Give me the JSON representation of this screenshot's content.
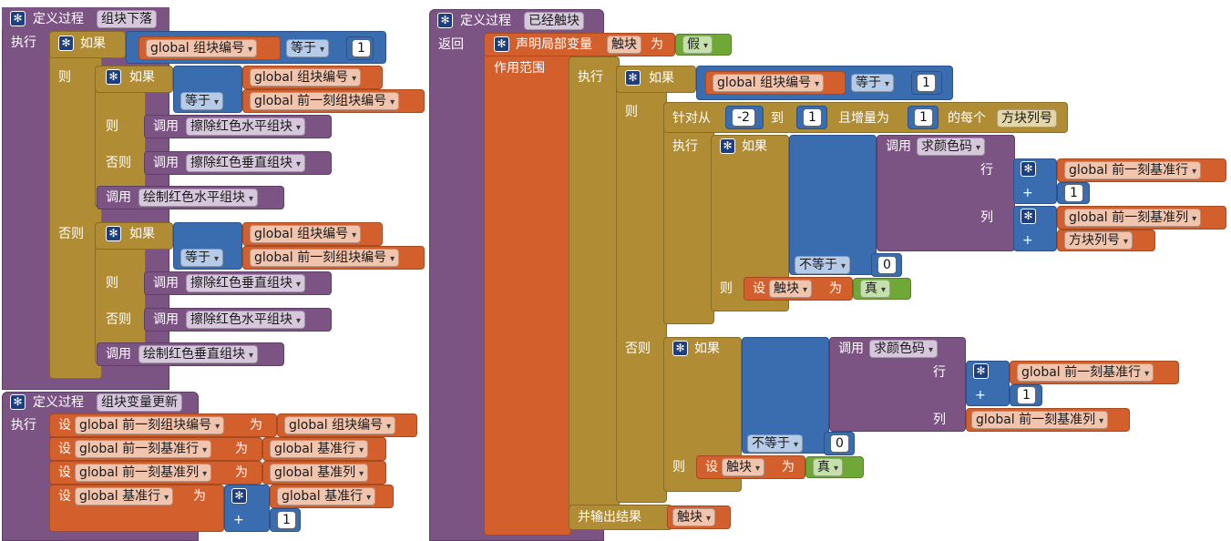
{
  "glyphs": {
    "gear": "✻",
    "caret": "▾"
  },
  "p1": {
    "def": "定义过程",
    "name": "组块下落",
    "do": "执行",
    "if": "如果",
    "then": "则",
    "else": "否则",
    "g_block": "global 组块编号",
    "eq": "等于",
    "one": "1",
    "g_prev_block": "global 前一刻组块编号",
    "call": "调用",
    "erase_h": "擦除红色水平组块",
    "erase_v": "擦除红色垂直组块",
    "draw_h": "绘制红色水平组块",
    "draw_v": "绘制红色垂直组块"
  },
  "p2": {
    "def": "定义过程",
    "name": "组块变量更新",
    "do": "执行",
    "set": "设",
    "to": "为",
    "g_prev_block": "global 前一刻组块编号",
    "g_block": "global 组块编号",
    "g_prev_row": "global 前一刻基准行",
    "g_row": "global 基准行",
    "g_prev_col": "global 前一刻基准列",
    "g_col": "global 基准列",
    "plus": "+",
    "one": "1"
  },
  "p3": {
    "def": "定义过程",
    "name": "已经触块",
    "return": "返回",
    "declare": "声明局部变量",
    "var": "触块",
    "to": "为",
    "false": "假",
    "true": "真",
    "scope": "作用范围",
    "do": "执行",
    "if": "如果",
    "then": "则",
    "else": "否则",
    "g_block": "global 组块编号",
    "eq": "等于",
    "one": "1",
    "for_from": "针对从",
    "neg2": "-2",
    "to_word": "到",
    "step": "且增量为",
    "each": "的每个",
    "col_no": "方块列号",
    "call": "调用",
    "find_color": "求颜色码",
    "row": "行",
    "col": "列",
    "g_prev_row": "global 前一刻基准行",
    "g_prev_col": "global 前一刻基准列",
    "plus": "+",
    "neq": "不等于",
    "zero": "0",
    "set": "设",
    "output": "并输出结果"
  }
}
